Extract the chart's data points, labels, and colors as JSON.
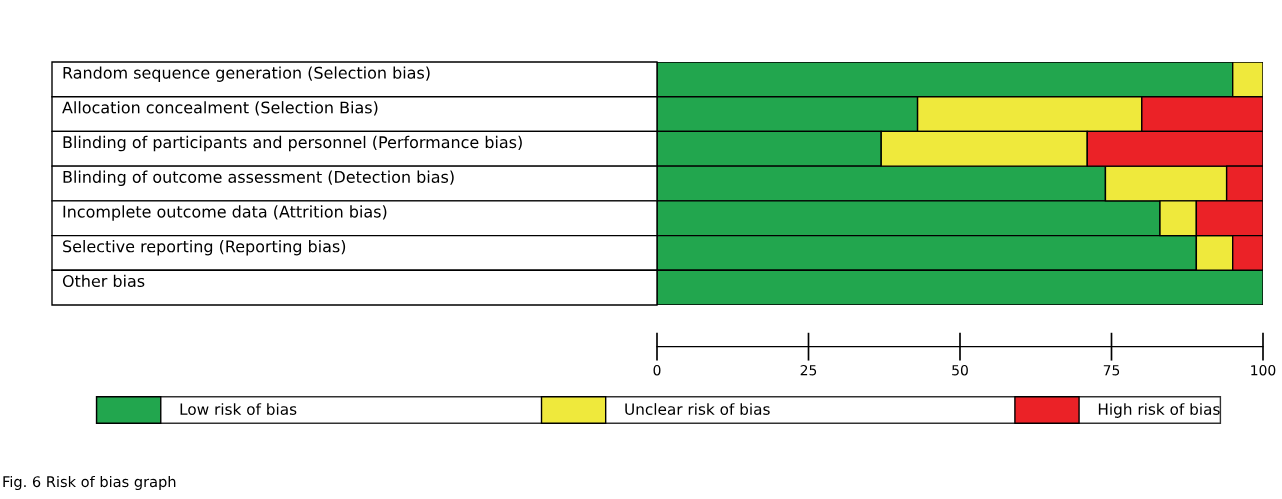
{
  "chart_data": {
    "type": "bar",
    "orientation": "horizontal",
    "stacked": true,
    "categories": [
      "Random sequence generation (Selection bias)",
      "Allocation concealment (Selection Bias)",
      "Blinding of participants and personnel (Performance bias)",
      "Blinding of outcome assessment (Detection bias)",
      "Incomplete outcome data (Attrition bias)",
      "Selective reporting (Reporting bias)",
      "Other bias"
    ],
    "series": [
      {
        "name": "Low risk of bias",
        "color": "#22a64e",
        "values": [
          95,
          43,
          37,
          74,
          83,
          89,
          100
        ]
      },
      {
        "name": "Unclear risk of bias",
        "color": "#efe93c",
        "values": [
          5,
          37,
          34,
          20,
          6,
          6,
          0
        ]
      },
      {
        "name": "High risk of bias",
        "color": "#eb2227",
        "values": [
          0,
          20,
          29,
          6,
          11,
          5,
          0
        ]
      }
    ],
    "xlim": [
      0,
      100
    ],
    "xticks": [
      0,
      25,
      50,
      75,
      100
    ],
    "grid": false,
    "legend": "bottom",
    "annotations": [
      "Fig. 6 Risk of bias graph"
    ]
  }
}
